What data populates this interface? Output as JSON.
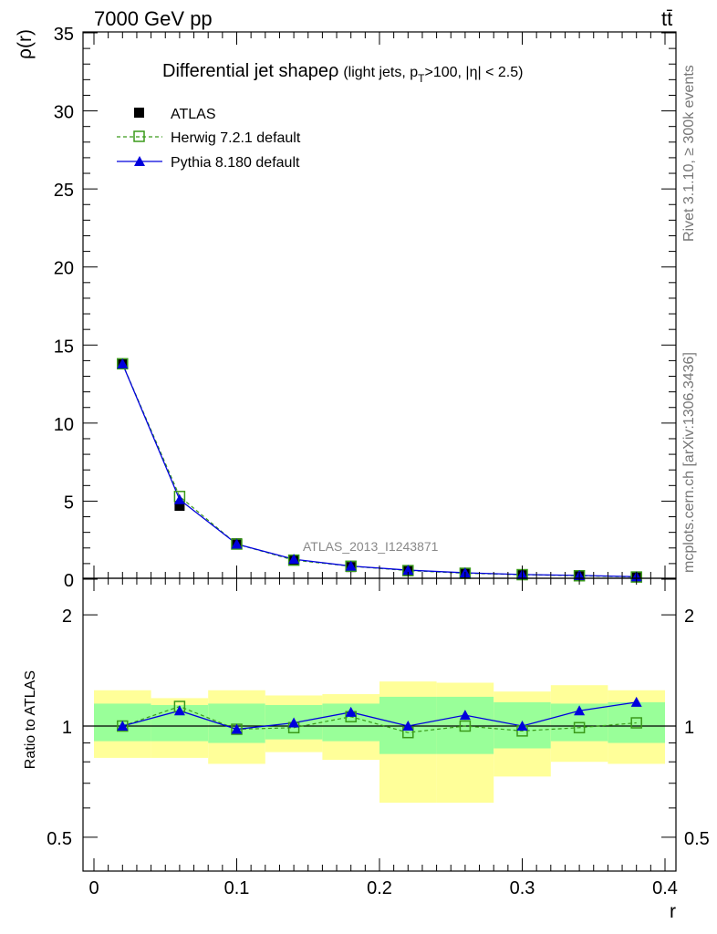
{
  "header": {
    "energy_label": "7000 GeV pp",
    "process_label": "tt̄"
  },
  "side_labels": {
    "rivet": "Rivet 3.1.10, ≥ 300k events",
    "source": "mcplots.cern.ch [arXiv:1306.3436]"
  },
  "chart_data": {
    "type": "line",
    "title": "Differential jet shapeρ",
    "title_sub": "(light jets, p",
    "title_sub_T": "T",
    "title_sub_rest": ">100, |η| < 2.5)",
    "analysis_label": "ATLAS_2013_I1243871",
    "xlabel": "r",
    "main_ylabel": "ρ(r)",
    "ratio_ylabel": "Ratio to ATLAS",
    "xlim": [
      0,
      0.4
    ],
    "main_ylim": [
      0,
      35
    ],
    "ratio_ylim": [
      0.4,
      2.4
    ],
    "x_ticks": [
      0,
      0.1,
      0.2,
      0.3,
      0.4
    ],
    "x_tick_labels": [
      "0",
      "0.1",
      "0.2",
      "0.3",
      "0.4"
    ],
    "main_y_ticks": [
      0,
      5,
      10,
      15,
      20,
      25,
      30,
      35
    ],
    "main_y_tick_labels": [
      "0",
      "5",
      "10",
      "15",
      "20",
      "25",
      "30",
      "35"
    ],
    "ratio_y_ticks": [
      0.5,
      1,
      2
    ],
    "ratio_y_tick_labels": [
      "0.5",
      "1",
      "2"
    ],
    "bin_edges": [
      0,
      0.04,
      0.08,
      0.12,
      0.16,
      0.2,
      0.24,
      0.28,
      0.32,
      0.36,
      0.4
    ],
    "x": [
      0.02,
      0.06,
      0.1,
      0.14,
      0.18,
      0.22,
      0.26,
      0.3,
      0.34,
      0.38
    ],
    "series": [
      {
        "name": "ATLAS",
        "color": "#000000",
        "marker": "square-filled",
        "values": [
          13.8,
          4.7,
          2.3,
          1.25,
          0.78,
          0.58,
          0.38,
          0.3,
          0.22,
          0.14
        ]
      },
      {
        "name": "Herwig 7.2.1 default",
        "color": "#3a9a1a",
        "marker": "square-open",
        "dashed": true,
        "values": [
          13.8,
          5.3,
          2.25,
          1.22,
          0.83,
          0.55,
          0.38,
          0.29,
          0.22,
          0.14
        ],
        "ratio": [
          1.0,
          1.13,
          0.98,
          0.99,
          1.06,
          0.96,
          1.0,
          0.97,
          0.99,
          1.02
        ]
      },
      {
        "name": "Pythia 8.180 default",
        "color": "#0000dd",
        "marker": "triangle-filled",
        "values": [
          13.8,
          5.1,
          2.25,
          1.28,
          0.84,
          0.58,
          0.41,
          0.3,
          0.24,
          0.16
        ],
        "ratio": [
          1.0,
          1.1,
          0.98,
          1.02,
          1.09,
          1.0,
          1.07,
          1.0,
          1.1,
          1.16
        ],
        "ratio_err": [
          0.0,
          0.02,
          0.015,
          0.025,
          0.025,
          0.025,
          0.03,
          0.025,
          0.025,
          0.03
        ]
      }
    ],
    "band_yellow": {
      "color": "#ffff99",
      "lo": [
        0.82,
        0.82,
        0.79,
        0.85,
        0.81,
        0.62,
        0.62,
        0.73,
        0.8,
        0.79
      ],
      "hi": [
        1.25,
        1.19,
        1.25,
        1.21,
        1.22,
        1.32,
        1.31,
        1.24,
        1.29,
        1.25
      ]
    },
    "band_green": {
      "color": "#99ff99",
      "lo": [
        0.91,
        0.91,
        0.9,
        0.92,
        0.91,
        0.84,
        0.84,
        0.87,
        0.91,
        0.9
      ],
      "hi": [
        1.15,
        1.14,
        1.15,
        1.14,
        1.15,
        1.2,
        1.2,
        1.16,
        1.15,
        1.16
      ]
    }
  }
}
